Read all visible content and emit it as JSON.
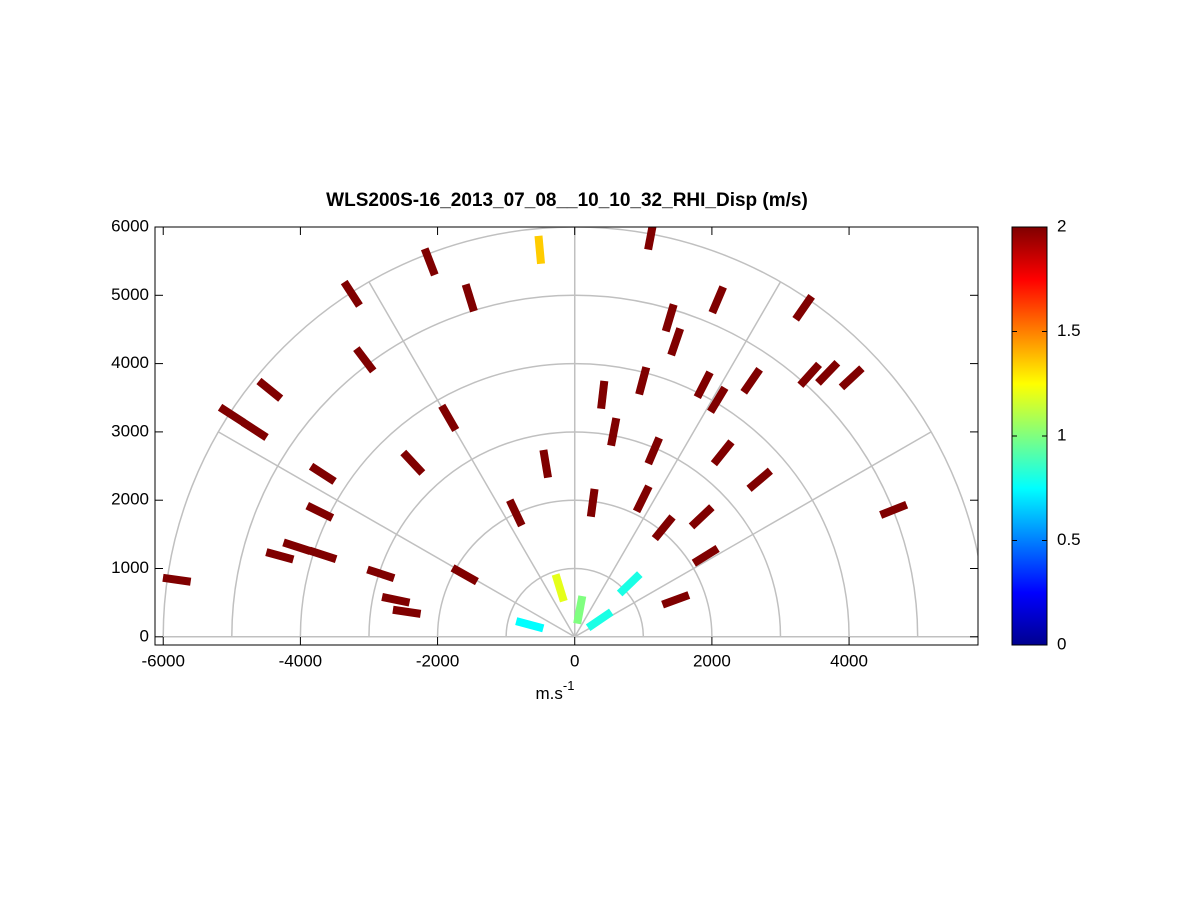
{
  "chart_data": {
    "type": "rhi",
    "title": "WLS200S-16_2013_07_08__10_10_32_RHI_Disp (m/s)",
    "xlabel": {
      "base": "m.s",
      "exponent": "-1"
    },
    "xlim": [
      -6120,
      5880
    ],
    "ylim": [
      -120,
      6000
    ],
    "xticks": [
      -6000,
      -4000,
      -2000,
      0,
      2000,
      4000
    ],
    "yticks": [
      0,
      1000,
      2000,
      3000,
      4000,
      5000,
      6000
    ],
    "rgrid": [
      1000,
      2000,
      3000,
      4000,
      5000,
      6000
    ],
    "thetagrid": [
      0,
      30,
      60,
      90,
      120,
      150,
      180
    ],
    "colormap": "jet",
    "clim": [
      0,
      2
    ],
    "cticks": [
      0,
      0.5,
      1,
      1.5,
      2
    ],
    "x": [
      -510,
      1108,
      -2114,
      -1530,
      -3250,
      -3061,
      -4446,
      -5000,
      -4665,
      -3673,
      -2361,
      -1837,
      -423,
      408,
      568,
      991,
      1152,
      1385,
      1472,
      2085,
      991,
      1880,
      2085,
      2157,
      2580,
      2697,
      3338,
      3426,
      3688,
      4038,
      4650,
      1851,
      1910,
      -3717,
      -3673,
      -4300,
      -4052,
      -5802,
      -2828,
      -2609,
      -2449,
      1297,
      262,
      802,
      -219,
      73,
      -656,
      364,
      1472,
      -860,
      -1604
    ],
    "y": [
      5666,
      5871,
      5490,
      4963,
      5022,
      4056,
      3616,
      3250,
      3030,
      2386,
      2548,
      3206,
      2533,
      3543,
      3001,
      2020,
      2723,
      4670,
      4319,
      4934,
      3748,
      3690,
      3470,
      2694,
      3748,
      2299,
      4817,
      3836,
      3865,
      3792,
      1859,
      1757,
      1186,
      1830,
      1200,
      1186,
      1318,
      835,
      922,
      542,
      366,
      1596,
      1962,
      776,
      717,
      395,
      176,
      249,
      542,
      1815,
      908
    ],
    "values": [
      1.35,
      2,
      2,
      2,
      2,
      2,
      2,
      2,
      2,
      2,
      2,
      2,
      2,
      2,
      2,
      2,
      2,
      2,
      2,
      2,
      2,
      2,
      2,
      2,
      2,
      2,
      2,
      2,
      2,
      2,
      2,
      2,
      2,
      2,
      2,
      2,
      2,
      2,
      2,
      2,
      2,
      2,
      2,
      0.8,
      1.2,
      1.0,
      0.75,
      0.8,
      2,
      2,
      2
    ]
  }
}
